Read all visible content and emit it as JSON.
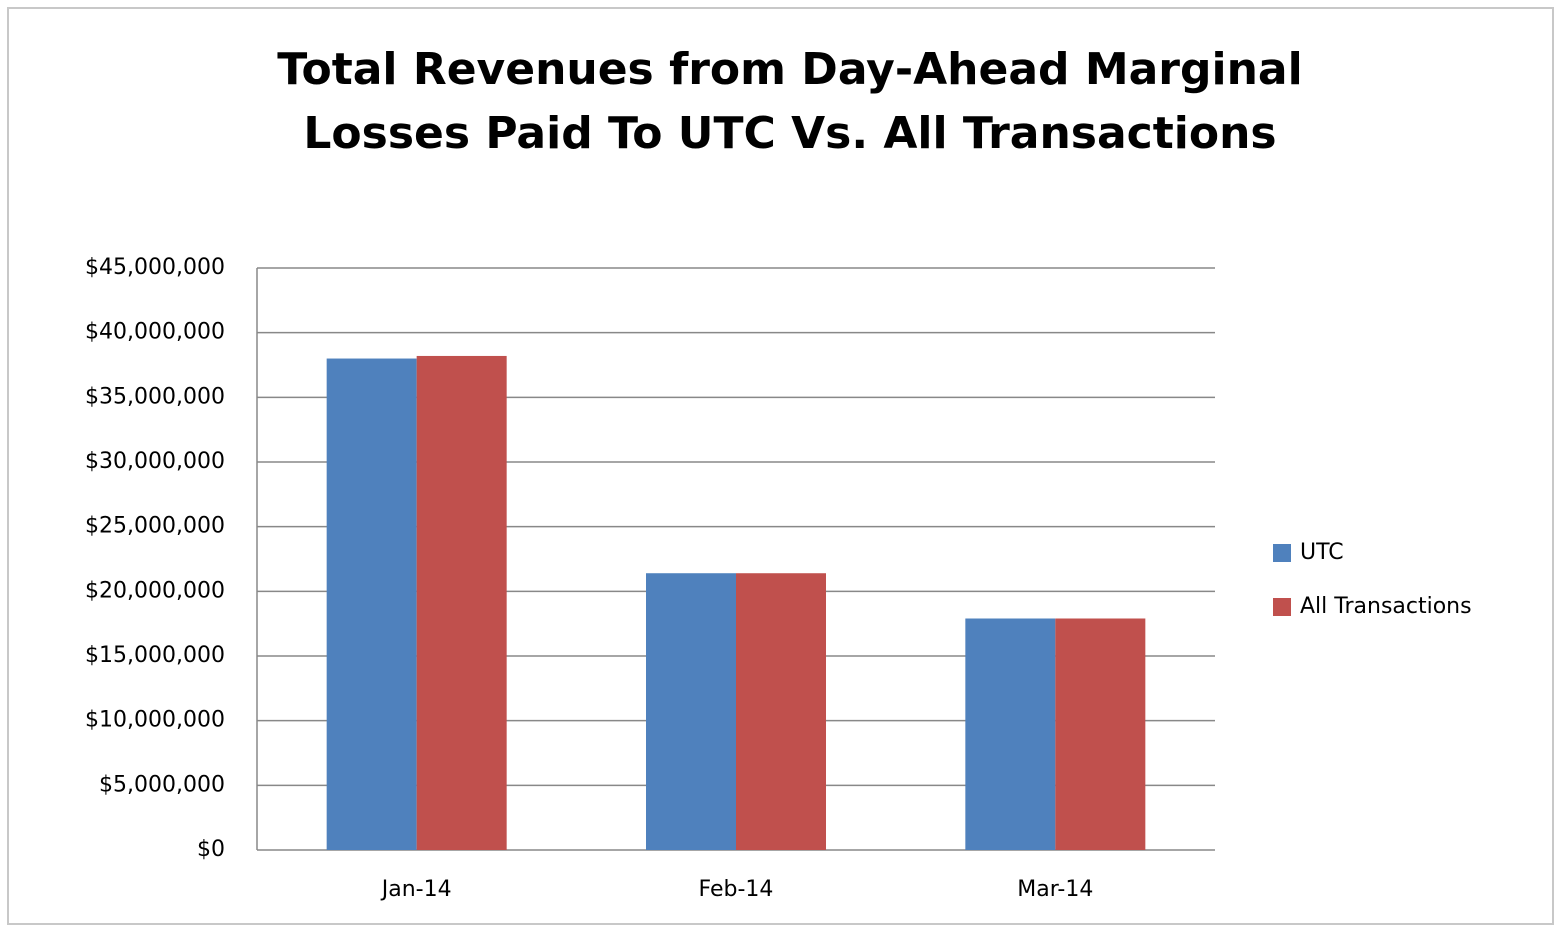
{
  "chart_data": {
    "type": "bar",
    "title": "Total Revenues from Day-Ahead Marginal Losses Paid To UTC Vs. All Transactions",
    "categories": [
      "Jan-14",
      "Feb-14",
      "Mar-14"
    ],
    "series": [
      {
        "name": "UTC",
        "color": "#4f81bd",
        "values": [
          38000000,
          21400000,
          17900000
        ]
      },
      {
        "name": "All Transactions",
        "color": "#c0504d",
        "values": [
          38200000,
          21400000,
          17900000
        ]
      }
    ],
    "ylim": [
      0,
      45000000
    ],
    "yticks": [
      {
        "value": 0,
        "label": "$0"
      },
      {
        "value": 5000000,
        "label": "$5,000,000"
      },
      {
        "value": 10000000,
        "label": "$10,000,000"
      },
      {
        "value": 15000000,
        "label": "$15,000,000"
      },
      {
        "value": 20000000,
        "label": "$20,000,000"
      },
      {
        "value": 25000000,
        "label": "$25,000,000"
      },
      {
        "value": 30000000,
        "label": "$30,000,000"
      },
      {
        "value": 35000000,
        "label": "$35,000,000"
      },
      {
        "value": 40000000,
        "label": "$40,000,000"
      },
      {
        "value": 45000000,
        "label": "$45,000,000"
      }
    ],
    "grid": true,
    "legend": "right"
  }
}
